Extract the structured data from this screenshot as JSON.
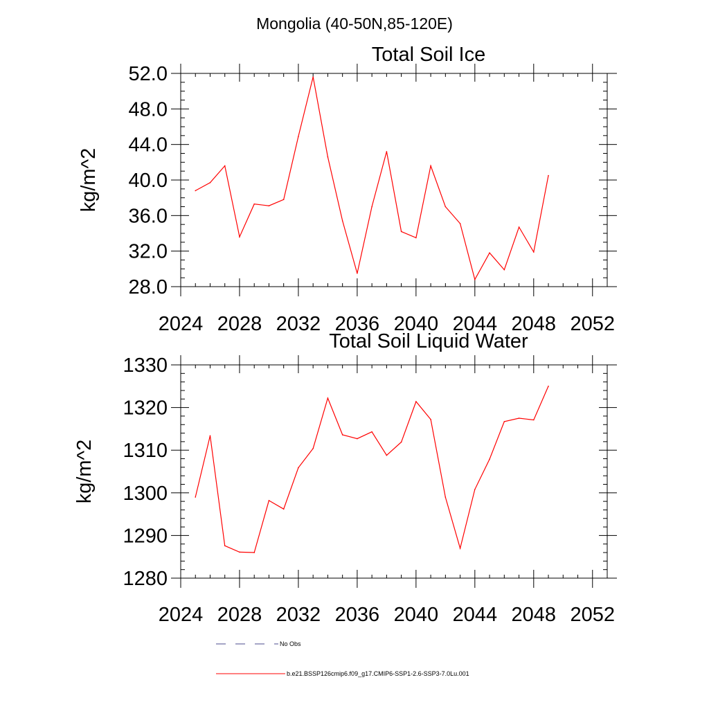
{
  "page_title": "Mongolia (40-50N,85-120E)",
  "legend": {
    "items": [
      {
        "label": "No Obs",
        "style": "dashed",
        "color": "#4a4a8c"
      },
      {
        "label": "b.e21.BSSP126cmip6.f09_g17.CMIP6-SSP1-2.6-SSP3-7.0Lu.001",
        "style": "solid",
        "color": "#ff0000"
      }
    ]
  },
  "chart_data": [
    {
      "type": "line",
      "title": "Total Soil Ice",
      "xlabel": "",
      "ylabel": "kg/m^2",
      "xlim": [
        2024,
        2053
      ],
      "ylim": [
        28,
        52
      ],
      "xticks": [
        2024,
        2028,
        2032,
        2036,
        2040,
        2044,
        2048,
        2052
      ],
      "xtick_labels": [
        "2024",
        "2028",
        "2032",
        "2036",
        "2040",
        "2044",
        "2048",
        "2052"
      ],
      "yticks": [
        28,
        32,
        36,
        40,
        44,
        48,
        52
      ],
      "ytick_labels": [
        "28.0",
        "32.0",
        "36.0",
        "40.0",
        "44.0",
        "48.0",
        "52.0"
      ],
      "grid": false,
      "series": [
        {
          "color": "#ff0000",
          "x": [
            2025,
            2026,
            2027,
            2028,
            2029,
            2030,
            2031,
            2032,
            2033,
            2034,
            2035,
            2036,
            2037,
            2038,
            2039,
            2040,
            2041,
            2042,
            2043,
            2044,
            2045,
            2046,
            2047,
            2048,
            2049
          ],
          "values": [
            38.8,
            39.7,
            41.6,
            33.6,
            37.3,
            37.1,
            37.8,
            44.9,
            51.6,
            42.6,
            35.4,
            29.5,
            37.0,
            43.2,
            34.2,
            33.5,
            41.6,
            37.0,
            35.1,
            28.8,
            31.8,
            29.9,
            34.7,
            31.9,
            40.5
          ]
        }
      ]
    },
    {
      "type": "line",
      "title": "Total Soil Liquid Water",
      "xlabel": "",
      "ylabel": "kg/m^2",
      "xlim": [
        2024,
        2053
      ],
      "ylim": [
        1280,
        1330
      ],
      "xticks": [
        2024,
        2028,
        2032,
        2036,
        2040,
        2044,
        2048,
        2052
      ],
      "xtick_labels": [
        "2024",
        "2028",
        "2032",
        "2036",
        "2040",
        "2044",
        "2048",
        "2052"
      ],
      "yticks": [
        1280,
        1290,
        1300,
        1310,
        1320,
        1330
      ],
      "ytick_labels": [
        "1280",
        "1290",
        "1300",
        "1310",
        "1320",
        "1330"
      ],
      "grid": false,
      "series": [
        {
          "color": "#ff0000",
          "x": [
            2025,
            2026,
            2027,
            2028,
            2029,
            2030,
            2031,
            2032,
            2033,
            2034,
            2035,
            2036,
            2037,
            2038,
            2039,
            2040,
            2041,
            2042,
            2043,
            2044,
            2045,
            2046,
            2047,
            2048,
            2049
          ],
          "values": [
            1299,
            1313.4,
            1287.6,
            1286.1,
            1286,
            1298.2,
            1296.2,
            1305.9,
            1310.4,
            1322.2,
            1313.6,
            1312.7,
            1314.3,
            1308.8,
            1311.9,
            1321.4,
            1317.2,
            1299,
            1287,
            1300.8,
            1307.9,
            1316.7,
            1317.5,
            1317.1,
            1325
          ]
        }
      ]
    }
  ]
}
